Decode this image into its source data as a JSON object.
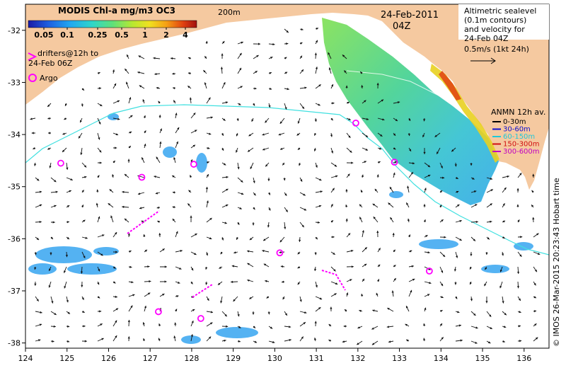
{
  "colorbar": {
    "title": "MODIS Chl-a mg/m3 OC3",
    "ticks": [
      "0.05",
      "0.1",
      "0.25",
      "0.5",
      "1",
      "2",
      "4"
    ],
    "colors": [
      "#1a1aa6",
      "#1f5fe0",
      "#22a8f0",
      "#2fd6c8",
      "#5fe07a",
      "#b8e830",
      "#f0e020",
      "#f5a015",
      "#e04010",
      "#a01010"
    ]
  },
  "contour_label": "200m",
  "date": "24-Feb-2011",
  "time": "04Z",
  "drifters_label": [
    "drifters@12h to",
    "24-Feb 06Z"
  ],
  "argo_label": "Argo",
  "altimetry_label": [
    "Altimetric sealevel",
    "(0.1m contours)",
    "and velocity for",
    "24-Feb 04Z"
  ],
  "scale_label": "0.5m/s (1kt 24h)",
  "anmn_legend": {
    "title": "ANMN 12h av.",
    "items": [
      {
        "label": "0-30m",
        "color": "#000000"
      },
      {
        "label": "30-60m",
        "color": "#1010d0"
      },
      {
        "label": "60-150m",
        "color": "#20c8d8"
      },
      {
        "label": "150-300m",
        "color": "#d01010"
      },
      {
        "label": "300-600m",
        "color": "#c000c0"
      }
    ]
  },
  "credit": "© IMOS 26-Mar-2015 20:23:43 Hobart time",
  "x_axis": {
    "ticks": [
      "124",
      "125",
      "126",
      "127",
      "128",
      "129",
      "130",
      "131",
      "132",
      "133",
      "134",
      "135",
      "136"
    ],
    "range": [
      124,
      136.6
    ]
  },
  "y_axis": {
    "ticks": [
      "-32",
      "-33",
      "-34",
      "-35",
      "-36",
      "-37",
      "-38"
    ],
    "range": [
      -38.1,
      -31.5
    ]
  },
  "colors": {
    "land": "#f5c9a0",
    "ocean": "#ffffff",
    "contour": "#40e0e0",
    "drifter": "#ff00ff"
  },
  "argo_floats": [
    {
      "lon": 124.85,
      "lat": -34.55
    },
    {
      "lon": 126.8,
      "lat": -34.82
    },
    {
      "lon": 128.05,
      "lat": -34.57
    },
    {
      "lon": 131.95,
      "lat": -33.78
    },
    {
      "lon": 132.88,
      "lat": -34.53
    },
    {
      "lon": 130.12,
      "lat": -36.27
    },
    {
      "lon": 133.72,
      "lat": -36.62
    },
    {
      "lon": 127.2,
      "lat": -37.4
    },
    {
      "lon": 128.22,
      "lat": -37.53
    }
  ]
}
